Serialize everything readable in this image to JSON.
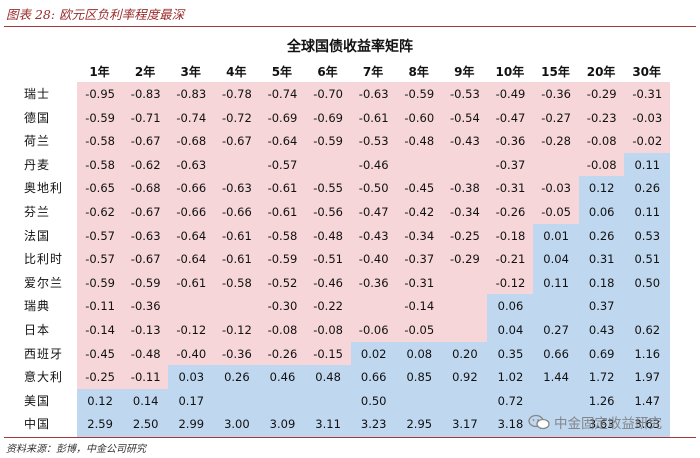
{
  "figure_title": "图表 28: 欧元区负利率程度最深",
  "chart_title": "全球国债收益率矩阵",
  "source_note": "资料来源：彭博，中金公司研究",
  "watermark_text": "中金固定收益研究",
  "colors": {
    "negative": "#f6d6d8",
    "positive": "#bfd7ef",
    "accent": "#a23a3a"
  },
  "chart_data": {
    "type": "table",
    "columns": [
      "1年",
      "2年",
      "3年",
      "4年",
      "5年",
      "6年",
      "7年",
      "8年",
      "9年",
      "10年",
      "15年",
      "20年",
      "30年"
    ],
    "rows": [
      {
        "label": "瑞士",
        "values": [
          "-0.95",
          "-0.83",
          "-0.83",
          "-0.78",
          "-0.74",
          "-0.70",
          "-0.63",
          "-0.59",
          "-0.53",
          "-0.49",
          "-0.36",
          "-0.29",
          "-0.31"
        ]
      },
      {
        "label": "德国",
        "values": [
          "-0.59",
          "-0.71",
          "-0.74",
          "-0.72",
          "-0.69",
          "-0.69",
          "-0.61",
          "-0.60",
          "-0.54",
          "-0.47",
          "-0.27",
          "-0.23",
          "-0.03"
        ]
      },
      {
        "label": "荷兰",
        "values": [
          "-0.58",
          "-0.67",
          "-0.68",
          "-0.67",
          "-0.64",
          "-0.59",
          "-0.53",
          "-0.48",
          "-0.43",
          "-0.36",
          "-0.28",
          "-0.08",
          "-0.02"
        ]
      },
      {
        "label": "丹麦",
        "values": [
          "-0.58",
          "-0.62",
          "-0.63",
          "",
          "-0.57",
          "",
          "-0.46",
          "",
          "",
          "-0.37",
          "",
          "-0.08",
          "0.11"
        ]
      },
      {
        "label": "奥地利",
        "values": [
          "-0.65",
          "-0.68",
          "-0.66",
          "-0.63",
          "-0.61",
          "-0.55",
          "-0.50",
          "-0.45",
          "-0.38",
          "-0.31",
          "-0.03",
          "0.12",
          "0.26"
        ]
      },
      {
        "label": "芬兰",
        "values": [
          "-0.62",
          "-0.67",
          "-0.66",
          "-0.66",
          "-0.61",
          "-0.56",
          "-0.47",
          "-0.42",
          "-0.34",
          "-0.26",
          "-0.05",
          "0.06",
          "0.11"
        ]
      },
      {
        "label": "法国",
        "values": [
          "-0.57",
          "-0.63",
          "-0.64",
          "-0.61",
          "-0.58",
          "-0.48",
          "-0.43",
          "-0.34",
          "-0.25",
          "-0.18",
          "0.01",
          "0.26",
          "0.53"
        ]
      },
      {
        "label": "比利时",
        "values": [
          "-0.57",
          "-0.67",
          "-0.64",
          "-0.61",
          "-0.59",
          "-0.51",
          "-0.40",
          "-0.37",
          "-0.29",
          "-0.21",
          "0.04",
          "0.31",
          "0.51"
        ]
      },
      {
        "label": "爱尔兰",
        "values": [
          "-0.59",
          "-0.59",
          "-0.61",
          "-0.58",
          "-0.52",
          "-0.46",
          "-0.36",
          "-0.31",
          "",
          "-0.12",
          "0.11",
          "0.18",
          "0.50"
        ]
      },
      {
        "label": "瑞典",
        "values": [
          "-0.11",
          "-0.36",
          "",
          "",
          "-0.30",
          "-0.22",
          "",
          "-0.14",
          "",
          "0.06",
          "",
          "0.37",
          ""
        ]
      },
      {
        "label": "日本",
        "values": [
          "-0.14",
          "-0.13",
          "-0.12",
          "-0.12",
          "-0.08",
          "-0.08",
          "-0.06",
          "-0.05",
          "",
          "0.04",
          "0.27",
          "0.43",
          "0.62"
        ]
      },
      {
        "label": "西班牙",
        "values": [
          "-0.45",
          "-0.48",
          "-0.40",
          "-0.36",
          "-0.26",
          "-0.15",
          "0.02",
          "0.08",
          "0.20",
          "0.35",
          "0.66",
          "0.69",
          "1.16"
        ]
      },
      {
        "label": "意大利",
        "values": [
          "-0.25",
          "-0.11",
          "0.03",
          "0.26",
          "0.46",
          "0.48",
          "0.66",
          "0.85",
          "0.92",
          "1.02",
          "1.44",
          "1.72",
          "1.97"
        ]
      },
      {
        "label": "美国",
        "values": [
          "0.12",
          "0.14",
          "0.17",
          "",
          "",
          "",
          "0.50",
          "",
          "",
          "0.72",
          "",
          "1.26",
          "1.47"
        ]
      },
      {
        "label": "中国",
        "values": [
          "2.59",
          "2.50",
          "2.99",
          "3.00",
          "3.09",
          "3.11",
          "3.23",
          "2.95",
          "3.17",
          "3.18",
          "",
          "3.63",
          "3.63"
        ]
      }
    ]
  }
}
